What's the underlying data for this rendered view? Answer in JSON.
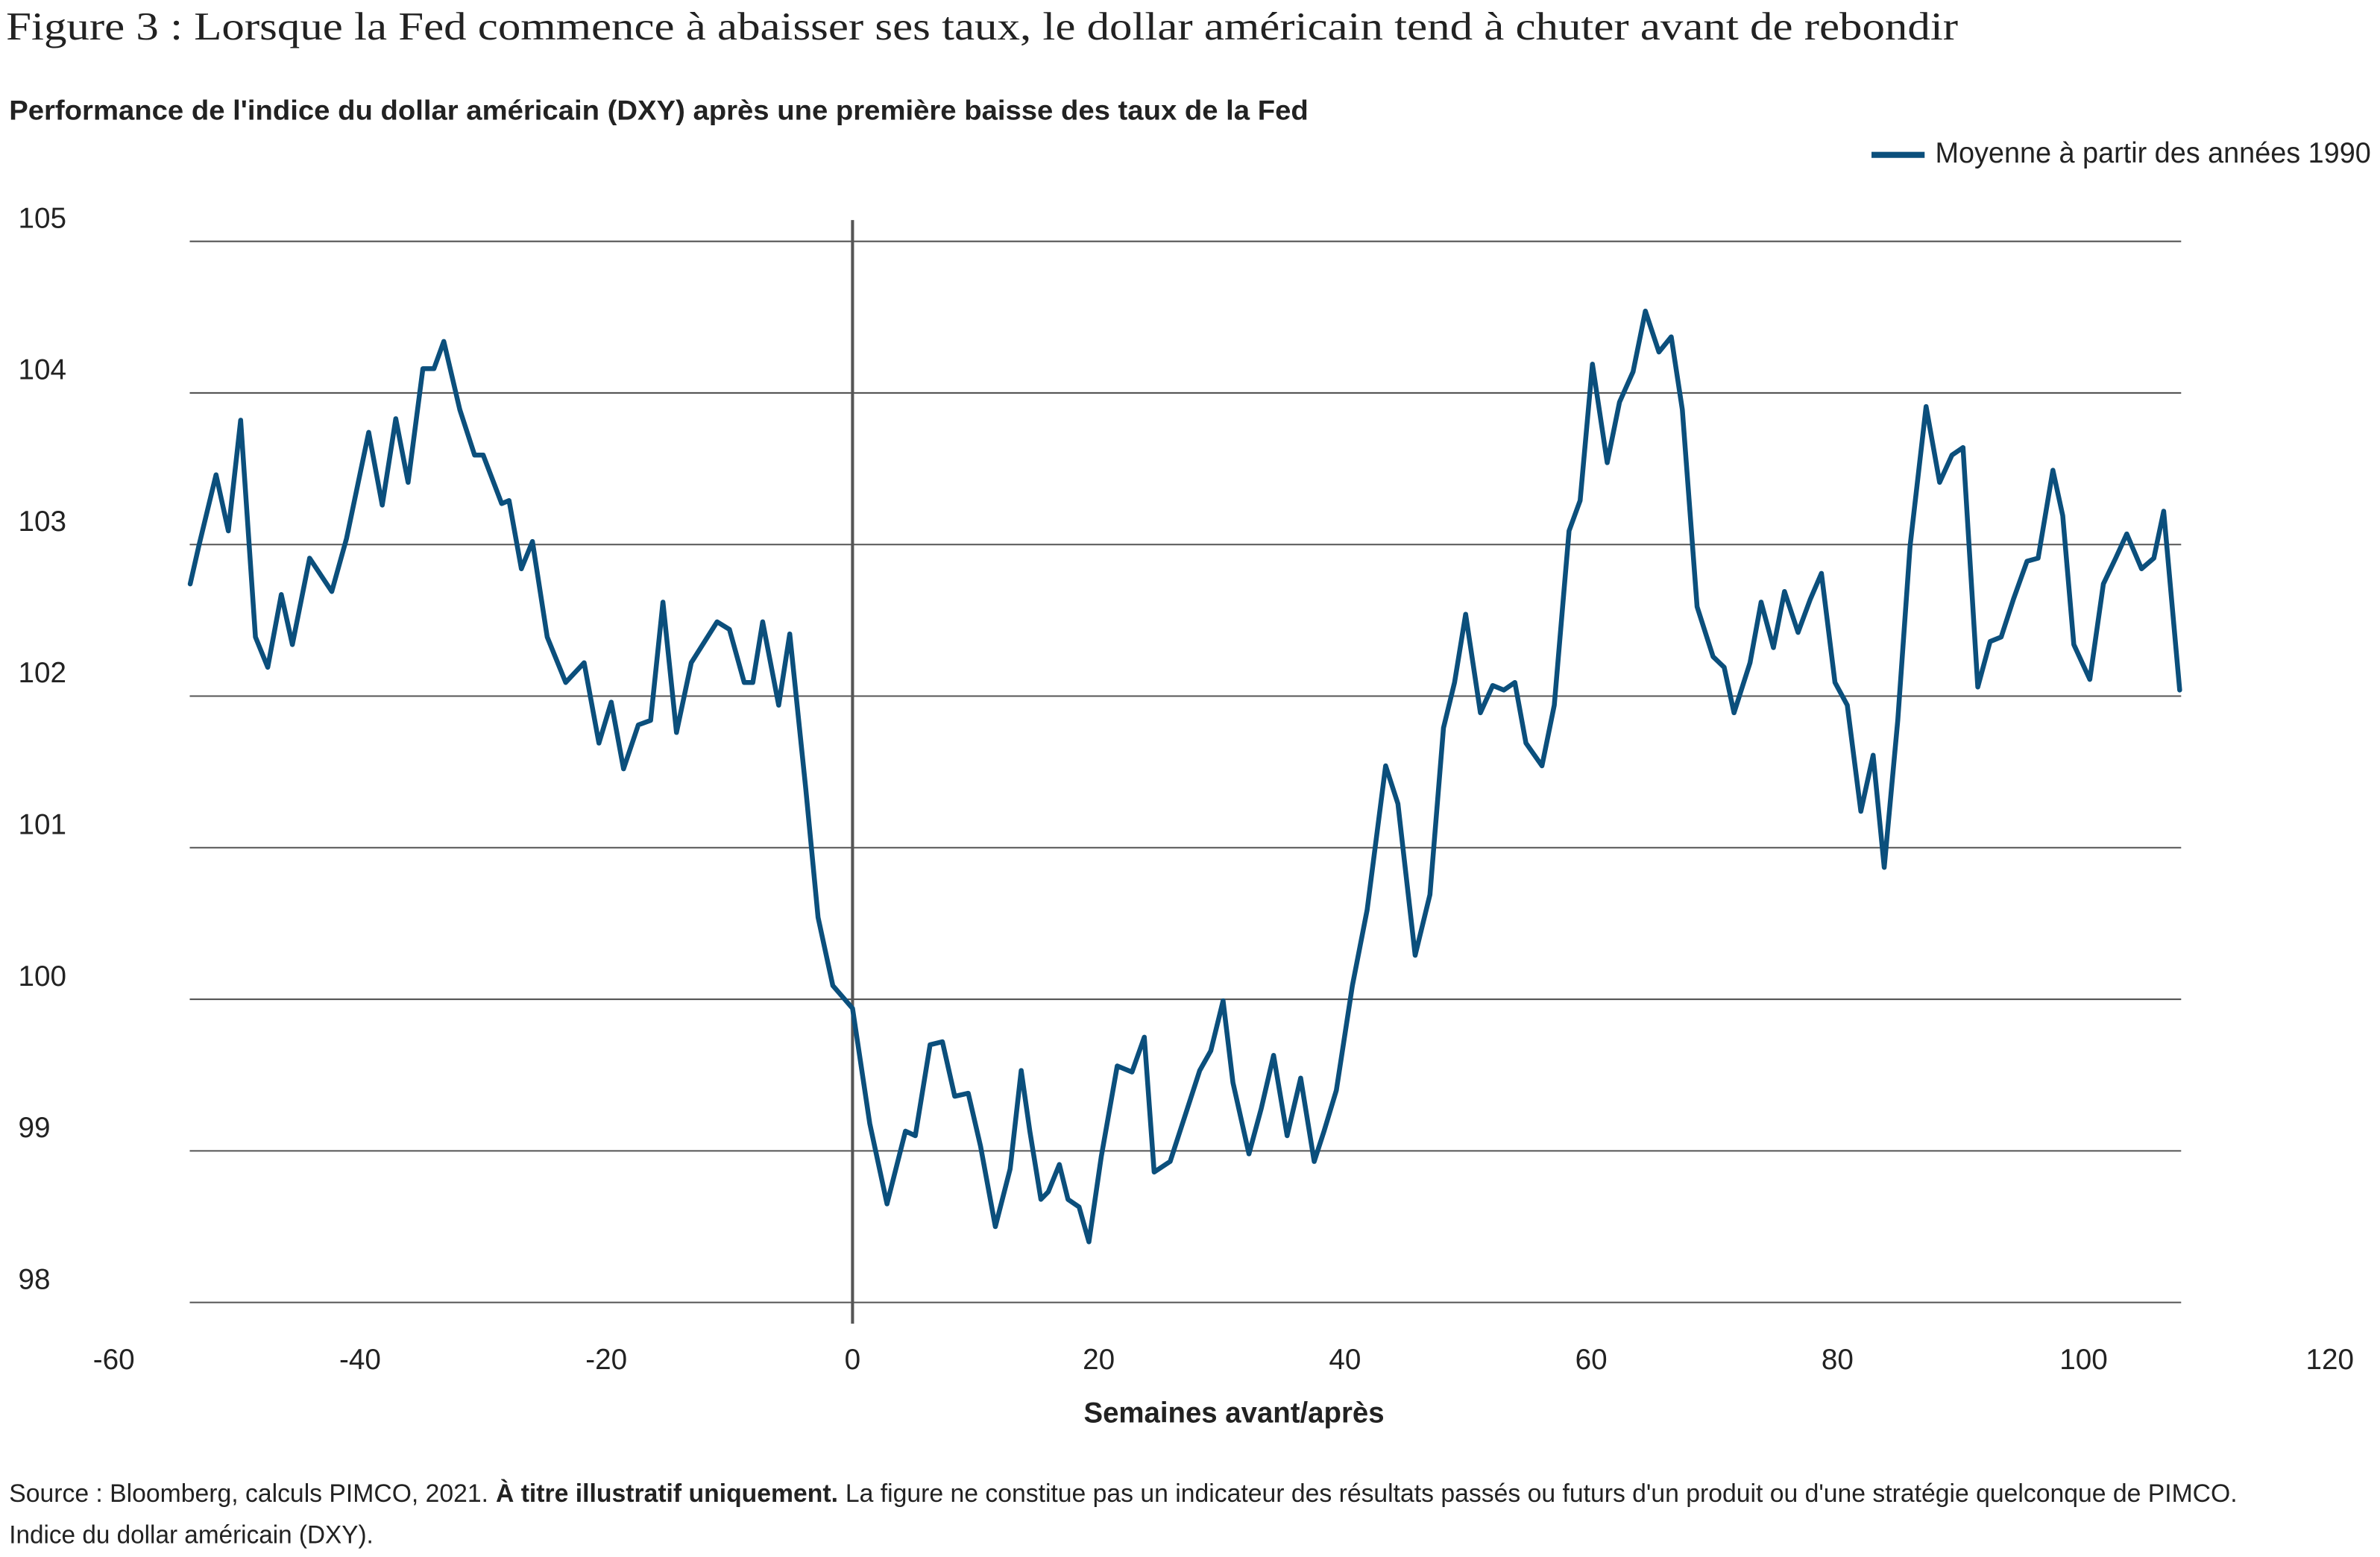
{
  "chart_data": {
    "type": "line",
    "title": "Figure 3 : Lorsque la Fed commence à abaisser ses taux, le dollar américain tend à chuter avant de rebondir",
    "subtitle": "Performance de l'indice du dollar américain (DXY) après une première baisse des taux de la Fed",
    "x_label": "Semaines avant/après",
    "xlim": [
      -60,
      120
    ],
    "xticks": [
      -60,
      -40,
      -20,
      0,
      20,
      40,
      60,
      80,
      100,
      120
    ],
    "ylim": [
      98,
      105
    ],
    "yticks": [
      98,
      99,
      100,
      101,
      102,
      103,
      104,
      105
    ],
    "grid": true,
    "vline_x": 0,
    "legend": "top-right",
    "x": [
      -53.8,
      -53.1,
      -51.7,
      -50.7,
      -49.7,
      -48.5,
      -47.5,
      -46.4,
      -45.5,
      -44.1,
      -42.3,
      -41.1,
      -39.3,
      -38.2,
      -37.1,
      -36.1,
      -34.9,
      -34.0,
      -33.2,
      -31.9,
      -30.7,
      -30.0,
      -28.5,
      -27.9,
      -26.9,
      -26.0,
      -24.8,
      -23.3,
      -21.8,
      -20.6,
      -19.6,
      -18.6,
      -17.4,
      -16.4,
      -15.4,
      -14.3,
      -13.1,
      -11.0,
      -10.0,
      -8.8,
      -8.1,
      -7.3,
      -6.0,
      -5.1,
      -3.8,
      -2.8,
      -1.6,
      0,
      1.4,
      2.8,
      4.3,
      5.1,
      6.3,
      7.3,
      8.3,
      9.4,
      10.4,
      11.6,
      12.8,
      13.7,
      14.4,
      15.3,
      15.9,
      16.8,
      17.5,
      18.4,
      19.2,
      20.2,
      21.5,
      22.7,
      23.7,
      24.5,
      25.8,
      27.0,
      28.2,
      29.1,
      30.1,
      30.9,
      32.2,
      33.2,
      34.2,
      35.3,
      36.4,
      37.5,
      38.3,
      39.3,
      40.6,
      41.8,
      43.3,
      44.3,
      45.7,
      46.9,
      48.0,
      48.9,
      49.8,
      51.0,
      52.0,
      52.9,
      53.8,
      54.7,
      56.0,
      57.0,
      58.2,
      59.1,
      60.1,
      61.3,
      62.3,
      63.4,
      64.4,
      65.5,
      66.5,
      67.4,
      68.6,
      69.9,
      70.8,
      71.6,
      72.9,
      73.8,
      74.8,
      75.7,
      76.8,
      77.8,
      78.7,
      79.8,
      80.8,
      81.9,
      82.9,
      83.8,
      84.9,
      85.9,
      87.2,
      88.3,
      89.3,
      90.2,
      91.4,
      92.4,
      93.3,
      94.3,
      95.4,
      96.3,
      97.5,
      98.3,
      99.2,
      100.5,
      101.6,
      102.6,
      103.5,
      104.7,
      105.7,
      106.5,
      107.8
    ],
    "series": [
      {
        "name": "Moyenne à partir des années 1990",
        "color": "#0b4f7c",
        "values": [
          102.74,
          102.99,
          103.46,
          103.09,
          103.82,
          102.39,
          102.19,
          102.67,
          102.34,
          102.91,
          102.69,
          103.04,
          103.74,
          103.26,
          103.83,
          103.41,
          104.16,
          104.16,
          104.34,
          103.89,
          103.59,
          103.59,
          103.27,
          103.29,
          102.84,
          103.02,
          102.39,
          102.09,
          102.22,
          101.69,
          101.96,
          101.52,
          101.81,
          101.84,
          102.62,
          101.76,
          102.22,
          102.49,
          102.44,
          102.09,
          102.09,
          102.49,
          101.94,
          102.41,
          101.39,
          100.54,
          100.09,
          99.94,
          99.18,
          98.65,
          99.13,
          99.1,
          99.7,
          99.72,
          99.36,
          99.38,
          99.03,
          98.5,
          98.88,
          99.53,
          99.13,
          98.68,
          98.73,
          98.91,
          98.68,
          98.63,
          98.4,
          98.96,
          99.56,
          99.52,
          99.75,
          98.86,
          98.93,
          99.23,
          99.53,
          99.66,
          99.99,
          99.45,
          98.98,
          99.28,
          99.63,
          99.1,
          99.48,
          98.93,
          99.13,
          99.4,
          100.09,
          100.59,
          101.54,
          101.29,
          100.29,
          100.69,
          101.79,
          102.09,
          102.54,
          101.89,
          102.07,
          102.04,
          102.09,
          101.69,
          101.54,
          101.94,
          103.09,
          103.29,
          104.19,
          103.54,
          103.94,
          104.14,
          104.54,
          104.27,
          104.37,
          103.89,
          102.59,
          102.26,
          102.19,
          101.89,
          102.22,
          102.62,
          102.32,
          102.69,
          102.42,
          102.64,
          102.81,
          102.09,
          101.94,
          101.24,
          101.61,
          100.87,
          101.84,
          102.99,
          103.91,
          103.41,
          103.59,
          103.64,
          102.06,
          102.36,
          102.39,
          102.64,
          102.89,
          102.91,
          103.49,
          103.19,
          102.34,
          102.11,
          102.74,
          102.91,
          103.07,
          102.84,
          102.91,
          103.22,
          102.04
        ]
      }
    ],
    "source": {
      "text_start": "Source : Bloomberg, calculs PIMCO, 2021.",
      "text_bold": "À titre illustratif uniquement.",
      "text_end": "La figure ne constitue pas un indicateur des résultats passés ou futurs d'un produit ou d'une stratégie quelconque de PIMCO.",
      "line2": "Indice du dollar américain (DXY)."
    }
  }
}
